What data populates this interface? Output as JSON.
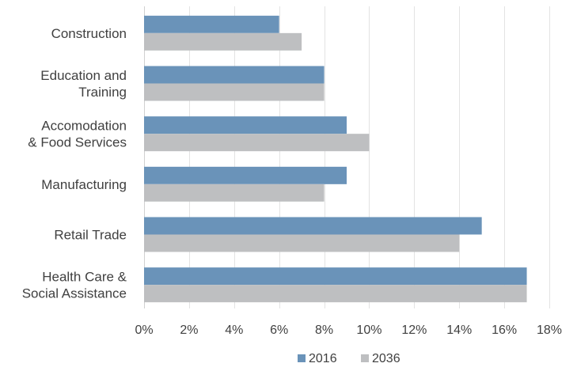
{
  "chart_data": {
    "type": "bar",
    "orientation": "horizontal",
    "categories": [
      [
        "Construction"
      ],
      [
        "Education and",
        "Training"
      ],
      [
        "Accomodation",
        "& Food Services"
      ],
      [
        "Manufacturing"
      ],
      [
        "Retail Trade"
      ],
      [
        "Health Care &",
        "Social Assistance"
      ]
    ],
    "series": [
      {
        "name": "2016",
        "color": "#6a93b9",
        "values": [
          6,
          8,
          9,
          9,
          15,
          17
        ]
      },
      {
        "name": "2036",
        "color": "#bebfc1",
        "values": [
          7,
          8,
          10,
          8,
          14,
          17
        ]
      }
    ],
    "xlim": [
      0,
      18
    ],
    "xticks": [
      "0%",
      "2%",
      "4%",
      "6%",
      "8%",
      "10%",
      "12%",
      "14%",
      "16%",
      "18%"
    ],
    "grid": true,
    "legend_position": "bottom"
  }
}
